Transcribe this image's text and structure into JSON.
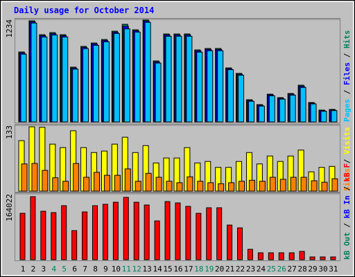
{
  "chart_data": [
    {
      "type": "bar",
      "title": "Daily usage for October 2014",
      "ylim": [
        0,
        1234
      ],
      "yticks": [
        1234
      ],
      "legend_separator": " / ",
      "series": [
        {
          "name": "Hits",
          "color": "#00805c",
          "values": [
            842,
            1217,
            1050,
            1075,
            1050,
            659,
            909,
            950,
            992,
            1092,
            1175,
            1109,
            1226,
            734,
            1059,
            1059,
            1059,
            867,
            884,
            884,
            650,
            584,
            267,
            208,
            334,
            292,
            342,
            442,
            233,
            142,
            150
          ]
        },
        {
          "name": "Files",
          "color": "#0000ff",
          "values": [
            830,
            1205,
            1038,
            1062,
            1038,
            648,
            897,
            938,
            980,
            1080,
            1150,
            1097,
            1214,
            722,
            1047,
            1047,
            1047,
            855,
            872,
            872,
            640,
            574,
            258,
            200,
            325,
            284,
            333,
            430,
            225,
            136,
            144
          ]
        },
        {
          "name": "Pages",
          "color": "#00c0ff",
          "values": [
            815,
            1190,
            1022,
            1046,
            1022,
            635,
            882,
            922,
            964,
            1064,
            1120,
            1081,
            1198,
            708,
            1031,
            1031,
            1031,
            840,
            857,
            857,
            628,
            562,
            248,
            190,
            314,
            274,
            322,
            415,
            216,
            128,
            136
          ]
        }
      ]
    },
    {
      "type": "bar",
      "ylim": [
        0,
        133
      ],
      "yticks": [
        133
      ],
      "legend_separator": " / ",
      "series": [
        {
          "name": "Visits",
          "color": "#ffff00",
          "values": [
            102,
            130,
            129,
            95,
            88,
            122,
            88,
            78,
            81,
            95,
            109,
            78,
            92,
            57,
            67,
            67,
            88,
            57,
            60,
            48,
            48,
            60,
            78,
            55,
            71,
            60,
            71,
            83,
            39,
            48,
            50
          ]
        },
        {
          "name": "Sites",
          "color": "#ff8000",
          "values": [
            55,
            56,
            42,
            27,
            20,
            56,
            28,
            38,
            32,
            32,
            45,
            20,
            36,
            28,
            20,
            17,
            29,
            20,
            17,
            15,
            17,
            20,
            22,
            20,
            28,
            24,
            28,
            28,
            21,
            18,
            25
          ]
        }
      ]
    },
    {
      "type": "bar",
      "ylim": [
        0,
        164022
      ],
      "yticks": [
        164022
      ],
      "legend_separator": " / ",
      "categories": [
        "1",
        "2",
        "3",
        "4",
        "5",
        "6",
        "7",
        "8",
        "9",
        "10",
        "11",
        "12",
        "13",
        "14",
        "15",
        "16",
        "17",
        "18",
        "19",
        "20",
        "21",
        "22",
        "23",
        "24",
        "25",
        "26",
        "27",
        "28",
        "29",
        "30",
        "31"
      ],
      "category_colors": [
        "#000000",
        "#000000",
        "#000000",
        "#00805c",
        "#00805c",
        "#000000",
        "#000000",
        "#000000",
        "#000000",
        "#000000",
        "#00805c",
        "#00805c",
        "#000000",
        "#000000",
        "#000000",
        "#000000",
        "#000000",
        "#00805c",
        "#00805c",
        "#000000",
        "#000000",
        "#000000",
        "#000000",
        "#000000",
        "#00805c",
        "#00805c",
        "#000000",
        "#000000",
        "#000000",
        "#000000",
        "#000000"
      ],
      "series": [
        {
          "name": "kB F",
          "color": "#ff0000",
          "values": [
            115676,
            157116,
            120855,
            117402,
            134667,
            72513,
            119128,
            134667,
            138120,
            143300,
            155385,
            143300,
            136394,
            96684,
            145026,
            141573,
            132941,
            115676,
            129489,
            129489,
            86325,
            79419,
            25898,
            17265,
            17265,
            17265,
            17265,
            20718,
            6906,
            6906,
            6906
          ]
        },
        {
          "name": "kB In",
          "color": "#0000ff",
          "values": [
            0,
            0,
            0,
            0,
            0,
            0,
            0,
            0,
            0,
            0,
            0,
            0,
            0,
            0,
            0,
            0,
            0,
            0,
            0,
            0,
            0,
            0,
            0,
            0,
            0,
            0,
            0,
            0,
            0,
            0,
            0
          ]
        },
        {
          "name": "kB Out",
          "color": "#00805c",
          "values": [
            0,
            0,
            0,
            0,
            0,
            0,
            0,
            0,
            0,
            0,
            0,
            0,
            0,
            0,
            0,
            0,
            0,
            0,
            0,
            0,
            0,
            0,
            0,
            0,
            0,
            0,
            0,
            0,
            0,
            0,
            0
          ]
        }
      ]
    }
  ]
}
